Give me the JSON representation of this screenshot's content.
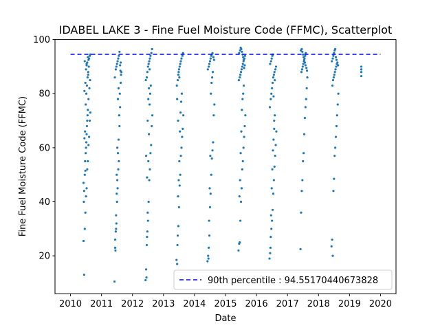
{
  "chart_data": {
    "type": "scatter",
    "title": "IDABEL LAKE 3 - Fine Fuel Moisture Code (FFMC), Scatterplot",
    "xlabel": "Date",
    "ylabel": "Fine Fuel Moisture Code (FFMC)",
    "xlim": [
      2009.5,
      2020.5
    ],
    "ylim": [
      6,
      100
    ],
    "xticks": [
      "2010",
      "2011",
      "2012",
      "2013",
      "2014",
      "2015",
      "2016",
      "2017",
      "2018",
      "2019",
      "2020"
    ],
    "yticks": [
      "20",
      "40",
      "60",
      "80",
      "100"
    ],
    "grid": false,
    "legend_position": "bottom-right",
    "point_color": "#1f77b4",
    "reference_line": {
      "label": "90th percentile : 94.55170440673828",
      "value": 94.55170440673828,
      "x_range": [
        2010.0,
        2020.0
      ],
      "style": "dashed",
      "color": "#0000ff"
    },
    "series": [
      {
        "x": [
          2010.42,
          2010.44,
          2010.46,
          2010.48,
          2010.5,
          2010.52,
          2010.54,
          2010.56,
          2010.58,
          2010.6,
          2010.62,
          2010.64,
          2010.45,
          2010.47,
          2010.49,
          2010.51,
          2010.53,
          2010.55,
          2010.57,
          2010.59,
          2010.43,
          2010.46,
          2010.48,
          2010.5,
          2010.52,
          2010.54,
          2010.56,
          2010.58,
          2010.61,
          2010.63,
          2010.42,
          2010.44,
          2010.47,
          2010.49,
          2010.51,
          2010.53,
          2010.55,
          2010.57,
          2010.45,
          2010.48,
          2010.5,
          2010.52,
          2010.46,
          2010.6,
          2010.62,
          2010.64,
          2010.58,
          2010.56,
          2010.54,
          2010.52
        ],
        "y": [
          25.5,
          13,
          30,
          36,
          42,
          45,
          52,
          55,
          61,
          64,
          70,
          73,
          63.5,
          66,
          76,
          80,
          83,
          86,
          88,
          90,
          40,
          50,
          51.5,
          60,
          65,
          70,
          74,
          78,
          82,
          85,
          47,
          44,
          55,
          58,
          62,
          68,
          72,
          87,
          81,
          84,
          89,
          91,
          92,
          93,
          94,
          94.5,
          92.5,
          93.5,
          91.5,
          90.5
        ]
      },
      {
        "x": [
          2011.42,
          2011.44,
          2011.46,
          2011.48,
          2011.5,
          2011.52,
          2011.54,
          2011.56,
          2011.58,
          2011.6,
          2011.62,
          2011.64,
          2011.45,
          2011.47,
          2011.49,
          2011.51,
          2011.53,
          2011.55,
          2011.57,
          2011.59,
          2011.43,
          2011.46,
          2011.48,
          2011.5,
          2011.52,
          2011.54,
          2011.56,
          2011.58,
          2011.61,
          2011.63,
          2011.44,
          2011.47,
          2011.49,
          2011.51,
          2011.53,
          2011.55,
          2011.6,
          2011.62
        ],
        "y": [
          10.5,
          26,
          29,
          32,
          40,
          45,
          52,
          55,
          68,
          75,
          84,
          88,
          22,
          35,
          43,
          48,
          58,
          63,
          72,
          80,
          86,
          89,
          90,
          91,
          92,
          93,
          94,
          95.5,
          88.5,
          87,
          23,
          30,
          50,
          60,
          78,
          82,
          90.5,
          91.5
        ]
      },
      {
        "x": [
          2012.42,
          2012.44,
          2012.46,
          2012.48,
          2012.5,
          2012.52,
          2012.54,
          2012.56,
          2012.58,
          2012.6,
          2012.62,
          2012.64,
          2012.45,
          2012.47,
          2012.49,
          2012.51,
          2012.53,
          2012.55,
          2012.57,
          2012.59,
          2012.43,
          2012.46,
          2012.48,
          2012.5,
          2012.52,
          2012.54,
          2012.56,
          2012.58,
          2012.61,
          2012.63,
          2012.44,
          2012.47,
          2012.49,
          2012.51,
          2012.53,
          2012.55
        ],
        "y": [
          11,
          15,
          24,
          29,
          33,
          40,
          48,
          52,
          58,
          61,
          68,
          72,
          12,
          27,
          36,
          55,
          65,
          76,
          80,
          83,
          85,
          86,
          88,
          90,
          91,
          92,
          93,
          94,
          95,
          96.5,
          57,
          49,
          70,
          78,
          82,
          89
        ]
      },
      {
        "x": [
          2013.42,
          2013.44,
          2013.46,
          2013.48,
          2013.5,
          2013.52,
          2013.54,
          2013.56,
          2013.58,
          2013.6,
          2013.62,
          2013.64,
          2013.45,
          2013.47,
          2013.49,
          2013.51,
          2013.53,
          2013.55,
          2013.57,
          2013.59,
          2013.43,
          2013.46,
          2013.48,
          2013.5,
          2013.52,
          2013.54,
          2013.56,
          2013.58,
          2013.61,
          2013.63,
          2013.44,
          2013.47,
          2013.49,
          2013.51
        ],
        "y": [
          18.5,
          17,
          27.5,
          31,
          38,
          46,
          50,
          57,
          60,
          64,
          67,
          72,
          24,
          42,
          48,
          55,
          66,
          73,
          77,
          80,
          83,
          85,
          87,
          89,
          90,
          91,
          92,
          93,
          94,
          95,
          78,
          70,
          88,
          86
        ]
      },
      {
        "x": [
          2014.42,
          2014.44,
          2014.46,
          2014.48,
          2014.5,
          2014.52,
          2014.54,
          2014.56,
          2014.58,
          2014.6,
          2014.62,
          2014.64,
          2014.45,
          2014.47,
          2014.49,
          2014.51,
          2014.53,
          2014.55,
          2014.57,
          2014.59,
          2014.43,
          2014.46,
          2014.48,
          2014.5,
          2014.52,
          2014.54,
          2014.56,
          2014.58,
          2014.61,
          2014.63
        ],
        "y": [
          18,
          20,
          23,
          27.5,
          38,
          43,
          50,
          56,
          59,
          62,
          72,
          76,
          19,
          33,
          45,
          57,
          80,
          84,
          86,
          88,
          89,
          90,
          91,
          92,
          93,
          94,
          94.5,
          95,
          93.5,
          92.5
        ]
      },
      {
        "x": [
          2015.42,
          2015.44,
          2015.46,
          2015.48,
          2015.5,
          2015.52,
          2015.54,
          2015.56,
          2015.58,
          2015.6,
          2015.62,
          2015.64,
          2015.45,
          2015.47,
          2015.49,
          2015.51,
          2015.53,
          2015.55,
          2015.57,
          2015.59,
          2015.43,
          2015.46,
          2015.48,
          2015.5,
          2015.52,
          2015.54,
          2015.56,
          2015.58,
          2015.61,
          2015.63,
          2015.44,
          2015.47,
          2015.49,
          2015.51,
          2015.53,
          2015.55,
          2015.57,
          2015.59,
          2015.6,
          2015.62
        ],
        "y": [
          22,
          24.5,
          25,
          33,
          40,
          45,
          52,
          55,
          60,
          64,
          68,
          72,
          42,
          48,
          58,
          66,
          74,
          78,
          80,
          83,
          85,
          86,
          87,
          88,
          89,
          90,
          91,
          92,
          93,
          94,
          95,
          96,
          97,
          96.5,
          95.5,
          94.5,
          93.5,
          92.5,
          89.5,
          90.5
        ]
      },
      {
        "x": [
          2016.42,
          2016.44,
          2016.46,
          2016.48,
          2016.5,
          2016.52,
          2016.54,
          2016.56,
          2016.58,
          2016.6,
          2016.62,
          2016.64,
          2016.45,
          2016.47,
          2016.49,
          2016.51,
          2016.53,
          2016.55,
          2016.57,
          2016.59,
          2016.43,
          2016.46,
          2016.48,
          2016.5,
          2016.52,
          2016.54,
          2016.56,
          2016.58,
          2016.61,
          2016.63,
          2016.44,
          2016.47,
          2016.49,
          2016.51,
          2016.53,
          2016.55,
          2016.57,
          2016.59
        ],
        "y": [
          19,
          21,
          27,
          30,
          33,
          37,
          43,
          48,
          53,
          57,
          61,
          66,
          23,
          35,
          45,
          52,
          59,
          63,
          67,
          72,
          75,
          78,
          80,
          82,
          84,
          86,
          87,
          88,
          89,
          90,
          91,
          92,
          93,
          94,
          94.5,
          79,
          70,
          85
        ]
      },
      {
        "x": [
          2017.42,
          2017.44,
          2017.46,
          2017.48,
          2017.5,
          2017.52,
          2017.54,
          2017.56,
          2017.58,
          2017.6,
          2017.62,
          2017.64,
          2017.45,
          2017.47,
          2017.49,
          2017.51,
          2017.53,
          2017.55,
          2017.57,
          2017.59,
          2017.43,
          2017.46,
          2017.48,
          2017.5,
          2017.52,
          2017.54,
          2017.56,
          2017.58,
          2017.61,
          2017.63
        ],
        "y": [
          22.5,
          36,
          44,
          48,
          55,
          58,
          65,
          71,
          75,
          78,
          82,
          86,
          88,
          89,
          90,
          91,
          92,
          93,
          94,
          95,
          96,
          96.5,
          95.5,
          94.5,
          93.5,
          92.5,
          91.5,
          90.5,
          89.5,
          88.5
        ]
      },
      {
        "x": [
          2018.42,
          2018.44,
          2018.46,
          2018.48,
          2018.5,
          2018.52,
          2018.54,
          2018.56,
          2018.58,
          2018.6,
          2018.62,
          2018.64,
          2018.45,
          2018.47,
          2018.49,
          2018.51,
          2018.53,
          2018.55,
          2018.57,
          2018.59,
          2018.43,
          2018.46,
          2018.48,
          2018.5,
          2018.52,
          2018.54,
          2018.56,
          2018.58,
          2018.61,
          2018.63
        ],
        "y": [
          23.5,
          26,
          20,
          44,
          48.5,
          57,
          60,
          64,
          68,
          72,
          76,
          80,
          83,
          85,
          86,
          87,
          88,
          89,
          90,
          91,
          92,
          93,
          94,
          95,
          96,
          96.5,
          93.5,
          92.5,
          91.5,
          90.5
        ]
      },
      {
        "x": [
          2019.38,
          2019.38,
          2019.38,
          2019.38
        ],
        "y": [
          86.5,
          88,
          89,
          90
        ]
      }
    ]
  }
}
